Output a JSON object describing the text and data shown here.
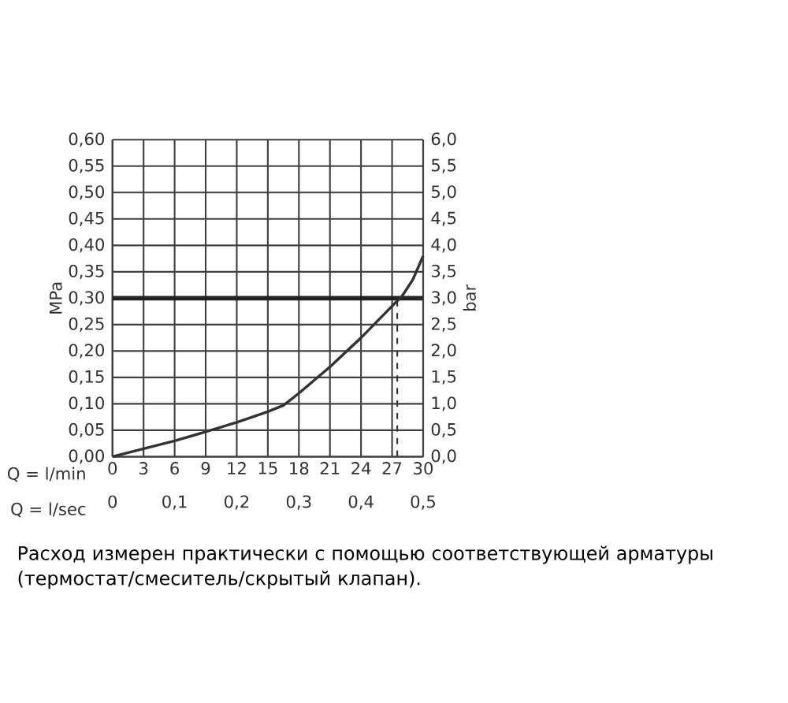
{
  "chart_data": {
    "type": "line",
    "xlabel": "Q = l/min",
    "x2label": "Q = l/sec",
    "ylabel": "MPa",
    "y2label": "bar",
    "x": [
      0,
      3,
      6,
      9,
      12,
      15,
      16.5,
      18,
      21,
      24,
      27,
      28,
      29,
      30
    ],
    "series": [
      {
        "color": "#333333",
        "values": [
          0,
          0.015,
          0.03,
          0.047,
          0.065,
          0.085,
          0.097,
          0.12,
          0.17,
          0.225,
          0.285,
          0.305,
          0.335,
          0.38
        ]
      }
    ],
    "xlim": [
      0,
      30
    ],
    "xticks": [
      0,
      3,
      6,
      9,
      12,
      15,
      18,
      21,
      24,
      27,
      30
    ],
    "x2lim": [
      0,
      0.5
    ],
    "x2ticks": [
      0,
      {
        "value": 0.1,
        "label": "0,1"
      },
      {
        "value": 0.2,
        "label": "0,2"
      },
      {
        "value": 0.3,
        "label": "0,3"
      },
      {
        "value": 0.4,
        "label": "0,4"
      },
      {
        "value": 0.5,
        "label": "0,5"
      }
    ],
    "ylim": [
      0,
      0.6
    ],
    "yticks": [
      {
        "value": 0,
        "label": "0,00"
      },
      {
        "value": 0.05,
        "label": "0,05"
      },
      {
        "value": 0.1,
        "label": "0,10"
      },
      {
        "value": 0.15,
        "label": "0,15"
      },
      {
        "value": 0.2,
        "label": "0,20"
      },
      {
        "value": 0.25,
        "label": "0,25"
      },
      {
        "value": 0.3,
        "label": "0,30"
      },
      {
        "value": 0.35,
        "label": "0,35"
      },
      {
        "value": 0.4,
        "label": "0,40"
      },
      {
        "value": 0.45,
        "label": "0,45"
      },
      {
        "value": 0.5,
        "label": "0,50"
      },
      {
        "value": 0.55,
        "label": "0,55"
      },
      {
        "value": 0.6,
        "label": "0,60"
      }
    ],
    "y2lim": [
      0,
      6
    ],
    "y2ticks": [
      {
        "value": 0,
        "label": "0,0"
      },
      {
        "value": 0.5,
        "label": "0,5"
      },
      {
        "value": 1,
        "label": "1,0"
      },
      {
        "value": 1.5,
        "label": "1,5"
      },
      {
        "value": 2,
        "label": "2,0"
      },
      {
        "value": 2.5,
        "label": "2,5"
      },
      {
        "value": 3,
        "label": "3,0"
      },
      {
        "value": 3.5,
        "label": "3,5"
      },
      {
        "value": 4,
        "label": "4,0"
      },
      {
        "value": 4.5,
        "label": "4,5"
      },
      {
        "value": 5,
        "label": "5,0"
      },
      {
        "value": 5.5,
        "label": "5,5"
      },
      {
        "value": 6,
        "label": "6,0"
      }
    ],
    "ref_lines": [
      {
        "axis": "y",
        "value": 0.3,
        "color": "#222222",
        "line_style": "solid"
      },
      {
        "axis": "x",
        "value": 27.5,
        "color": "#333333",
        "line_style": "dashed"
      }
    ],
    "grid": true,
    "line_style": "solid",
    "marker": "none",
    "annotations": [
      "Расход измерен практически с помощью соответствующей арматуры (термостат/смеситель/скрытый клапан)."
    ]
  }
}
